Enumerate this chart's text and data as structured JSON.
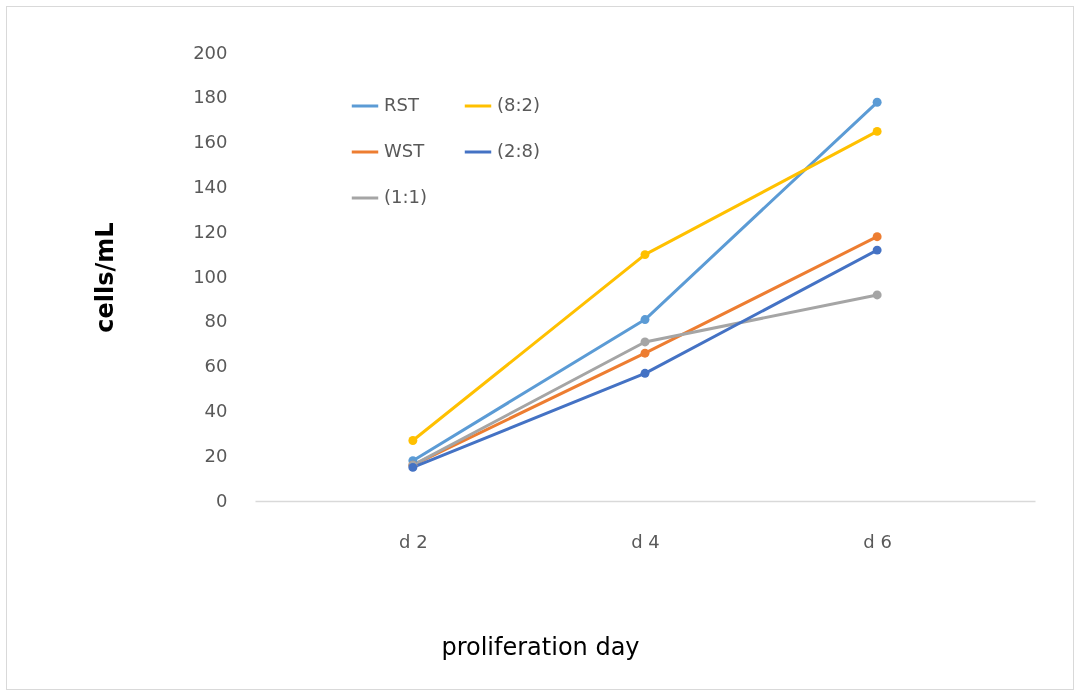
{
  "chart_data": {
    "type": "line",
    "xlabel": "proliferation day",
    "ylabel": "cells/mL",
    "categories": [
      "d 2",
      "d 4",
      "d 6"
    ],
    "ylim": [
      0,
      200
    ],
    "yticks": [
      0,
      20,
      40,
      60,
      80,
      100,
      120,
      140,
      160,
      180,
      200
    ],
    "grid": false,
    "legend": "top left",
    "marker": "circle",
    "line_style": "solid",
    "series": [
      {
        "name": "RST",
        "color": "#5b9bd5",
        "values": [
          18,
          81,
          178
        ]
      },
      {
        "name": "WST",
        "color": "#ed7d31",
        "values": [
          16,
          66,
          118
        ]
      },
      {
        "name": "(1:1)",
        "color": "#a5a5a5",
        "values": [
          16,
          71,
          92
        ]
      },
      {
        "name": "(8:2)",
        "color": "#ffc000",
        "values": [
          27,
          110,
          165
        ]
      },
      {
        "name": "(2:8)",
        "color": "#4472c4",
        "values": [
          15,
          57,
          112
        ]
      }
    ]
  }
}
